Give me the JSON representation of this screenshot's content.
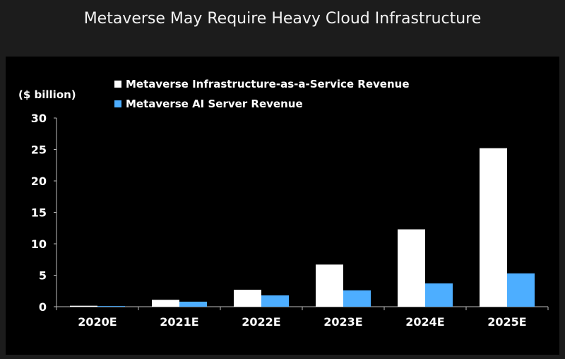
{
  "chart_data": {
    "type": "bar",
    "title": "Metaverse May Require Heavy Cloud Infrastructure",
    "ylabel": "($ billion)",
    "xlabel": "",
    "categories": [
      "2020E",
      "2021E",
      "2022E",
      "2023E",
      "2024E",
      "2025E"
    ],
    "series": [
      {
        "name": "Metaverse Infrastructure-as-a-Service Revenue",
        "color": "#ffffff",
        "values": [
          0.15,
          1.1,
          2.7,
          6.7,
          12.3,
          25.2
        ]
      },
      {
        "name": "Metaverse AI Server Revenue",
        "color": "#4daeff",
        "values": [
          0.1,
          0.8,
          1.8,
          2.6,
          3.7,
          5.3
        ]
      }
    ],
    "ylim": [
      0,
      30
    ],
    "yticks": [
      0,
      5,
      10,
      15,
      20,
      25,
      30
    ],
    "grid": false,
    "legend_position": "top"
  }
}
